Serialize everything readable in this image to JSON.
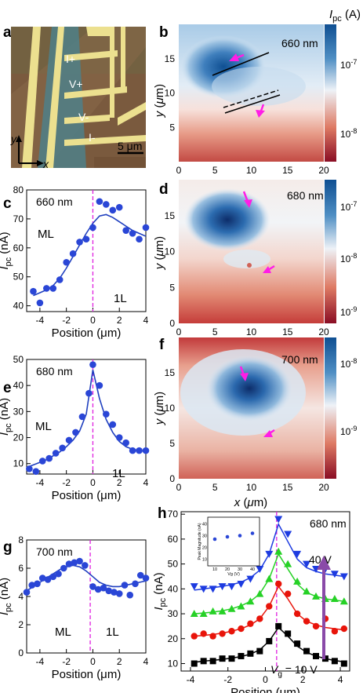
{
  "panel_labels": {
    "a": "a",
    "b": "b",
    "c": "c",
    "d": "d",
    "e": "e",
    "f": "f",
    "g": "g",
    "h": "h"
  },
  "panel_a": {
    "electrodes": [
      "I+",
      "V+",
      "V-",
      "I-"
    ],
    "scale_bar": "5 μm",
    "axis_x": "x",
    "axis_y": "y",
    "colors": {
      "substrate": "#7d5a3c",
      "flake_blue": "#4d7f88",
      "metal": "#e9dd92"
    }
  },
  "maps": {
    "colorbar_title": "I",
    "colorbar_title_sub": "pc",
    "colorbar_title_unit": " (A)",
    "colors": {
      "high": "#1f5f9e",
      "mid": "#f2f0ef",
      "low": "#a01427",
      "arrow": "#ff1de6"
    },
    "b": {
      "wavelength": "660 nm",
      "cb_ticks": [
        "10",
        "-7",
        "10",
        "-8"
      ]
    },
    "d": {
      "wavelength": "680 nm",
      "cb_ticks": [
        "10",
        "-7",
        "10",
        "-8",
        "10",
        "-9"
      ]
    },
    "f": {
      "wavelength": "700 nm",
      "cb_ticks": [
        "10",
        "-8",
        "10",
        "-9"
      ]
    },
    "ylabel_parts": [
      "y",
      " (",
      "μ",
      "m)"
    ],
    "xlabel_parts": [
      "x",
      " (",
      "μ",
      "m)"
    ]
  },
  "profile_labels": {
    "ylabel_main": "I",
    "ylabel_sub": "pc",
    "ylabel_unit": " (nA)",
    "xlabel": "Position (μm)",
    "ml": "ML",
    "onel": "1L"
  },
  "chart_data": [
    {
      "id": "c",
      "type": "scatter",
      "title": "660 nm",
      "xlabel": "Position (μm)",
      "ylabel": "Ipc (nA)",
      "xlim": [
        -5,
        4
      ],
      "ylim": [
        38,
        80
      ],
      "xticks": [
        -4,
        -2,
        0,
        2,
        4
      ],
      "yticks": [
        40,
        50,
        60,
        70,
        80
      ],
      "points": {
        "x": [
          -4.5,
          -4.0,
          -3.5,
          -3.0,
          -2.5,
          -2.0,
          -1.5,
          -1.0,
          -0.5,
          0,
          0.5,
          1.0,
          1.5,
          2.0,
          2.5,
          3.0,
          3.5,
          4.0
        ],
        "y": [
          45,
          41,
          46,
          46,
          49,
          55,
          58,
          62,
          63,
          67,
          76,
          75,
          73,
          74,
          66,
          65,
          63,
          67
        ]
      },
      "fit": {
        "x": [
          -4.5,
          -4,
          -3.5,
          -3,
          -2.5,
          -2,
          -1.5,
          -1,
          -0.5,
          0,
          0.5,
          1,
          1.5,
          2,
          2.5,
          3,
          3.5,
          4
        ],
        "y": [
          43.5,
          44.5,
          45.5,
          47,
          49.5,
          53,
          57,
          61,
          65,
          68.5,
          71,
          71.5,
          70.5,
          69,
          67.5,
          66,
          65,
          64
        ]
      },
      "marker": 0
    },
    {
      "id": "e",
      "type": "scatter",
      "title": "680 nm",
      "xlabel": "Position (μm)",
      "ylabel": "Ipc (nA)",
      "xlim": [
        -5,
        4
      ],
      "ylim": [
        6,
        50
      ],
      "xticks": [
        -4,
        -2,
        0,
        2,
        4
      ],
      "yticks": [
        10,
        20,
        30,
        40,
        50
      ],
      "points": {
        "x": [
          -4.8,
          -4.3,
          -3.8,
          -3.3,
          -2.8,
          -2.3,
          -1.8,
          -1.3,
          -0.8,
          -0.3,
          0,
          0.5,
          1.0,
          1.5,
          2.0,
          2.5,
          3.0,
          3.5,
          4.0
        ],
        "y": [
          8,
          7,
          11,
          12,
          14,
          16,
          19,
          22,
          28,
          37,
          48,
          40,
          29,
          25,
          20,
          18,
          15,
          15,
          15
        ]
      },
      "fit": {
        "x": [
          -5,
          -4.5,
          -4,
          -3.5,
          -3,
          -2.5,
          -2,
          -1.5,
          -1,
          -0.5,
          0,
          0.5,
          1,
          1.5,
          2,
          2.5,
          3,
          3.5,
          4
        ],
        "y": [
          8.5,
          9.5,
          10.5,
          11.5,
          13,
          14.5,
          16.5,
          19,
          22.5,
          29,
          46,
          35,
          27,
          22,
          18.5,
          16.5,
          15.5,
          15,
          14.8
        ]
      },
      "marker": 0
    },
    {
      "id": "g",
      "type": "scatter",
      "title": "700 nm",
      "xlabel": "Position (μm)",
      "ylabel": "Ipc (nA)",
      "xlim": [
        -5,
        4
      ],
      "ylim": [
        0,
        8
      ],
      "xticks": [
        -4,
        -2,
        0,
        2,
        4
      ],
      "yticks": [
        0,
        2,
        4,
        6,
        8
      ],
      "points": {
        "x": [
          -5,
          -4.6,
          -4.2,
          -3.8,
          -3.4,
          -3.0,
          -2.6,
          -2.2,
          -1.8,
          -1.4,
          -1.0,
          -0.6,
          0,
          0.4,
          0.8,
          1.2,
          1.6,
          2.0,
          2.4,
          2.8,
          3.2,
          3.6,
          4.0
        ],
        "y": [
          4.3,
          4.8,
          4.9,
          5.3,
          5.2,
          5.4,
          5.6,
          6.0,
          6.3,
          6.4,
          6.5,
          6.2,
          4.7,
          4.5,
          4.6,
          4.4,
          4.3,
          4.2,
          4.8,
          4.1,
          4.9,
          5.5,
          5.3
        ]
      },
      "fit": {
        "x": [
          -5,
          -4.5,
          -4,
          -3.5,
          -3,
          -2.5,
          -2,
          -1.5,
          -1,
          -0.5,
          0,
          0.5,
          1,
          1.5,
          2,
          2.5,
          3,
          3.5,
          4
        ],
        "y": [
          4.4,
          4.7,
          5.0,
          5.3,
          5.6,
          5.9,
          6.1,
          6.2,
          6.1,
          5.8,
          5.4,
          5.0,
          4.8,
          4.7,
          4.7,
          4.8,
          4.9,
          5.0,
          5.1
        ]
      },
      "marker": -0.2
    },
    {
      "id": "h",
      "type": "scatter",
      "title": "680 nm",
      "xlabel": "Position (μm)",
      "ylabel": "Ipc (nA)",
      "xlim": [
        -4.5,
        4.5
      ],
      "ylim": [
        7,
        71
      ],
      "xticks": [
        -4,
        -2,
        0,
        2,
        4
      ],
      "yticks": [
        10,
        20,
        30,
        40,
        50,
        60,
        70
      ],
      "vg_high": "40 V",
      "vg_low_main": "V",
      "vg_low_sub": "g",
      "vg_low_val": " = 10 V",
      "marker": 0.6,
      "series": [
        {
          "color": "#000000",
          "shape": "square",
          "x": [
            -3.8,
            -3.3,
            -2.8,
            -2.3,
            -1.8,
            -1.3,
            -0.8,
            -0.3,
            0.2,
            0.7,
            1.2,
            1.7,
            2.2,
            2.7,
            3.2,
            3.7,
            4.2
          ],
          "y": [
            10,
            11,
            11,
            12,
            12,
            13,
            14,
            15,
            19,
            25,
            22,
            18,
            15,
            13,
            12,
            11,
            10
          ],
          "fit": [
            10.5,
            11,
            11.3,
            11.7,
            12.2,
            12.8,
            13.8,
            15.5,
            19,
            24.5,
            21,
            17,
            14.5,
            13,
            12,
            11.2,
            10.7
          ]
        },
        {
          "color": "#e8140a",
          "shape": "circle",
          "x": [
            -3.8,
            -3.3,
            -2.8,
            -2.3,
            -1.8,
            -1.3,
            -0.8,
            -0.3,
            0.2,
            0.7,
            1.2,
            1.7,
            2.2,
            2.7,
            3.2,
            3.7,
            4.2
          ],
          "y": [
            21,
            22,
            21,
            22,
            23,
            24,
            26,
            28,
            33,
            42,
            38,
            30,
            27,
            25,
            28,
            23,
            24
          ],
          "fit": [
            21,
            21.3,
            21.7,
            22.2,
            23,
            24,
            25.5,
            28,
            33,
            41,
            36,
            30,
            27,
            25.5,
            24.5,
            24,
            23.5
          ]
        },
        {
          "color": "#26d126",
          "shape": "triangle-up",
          "x": [
            -3.8,
            -3.3,
            -2.8,
            -2.3,
            -1.8,
            -1.3,
            -0.8,
            -0.3,
            0.2,
            0.7,
            1.2,
            1.7,
            2.2,
            2.7,
            3.2,
            3.7,
            4.2
          ],
          "y": [
            30,
            30,
            31,
            31,
            32,
            33,
            35,
            38,
            44,
            55,
            50,
            43,
            39,
            37,
            36,
            36,
            35
          ],
          "fit": [
            30,
            30.3,
            30.7,
            31.2,
            32,
            33.2,
            35,
            38,
            44,
            54,
            48,
            42,
            38.5,
            37,
            36,
            35.5,
            35
          ]
        },
        {
          "color": "#1d3be0",
          "shape": "triangle-down",
          "x": [
            -3.8,
            -3.3,
            -2.8,
            -2.3,
            -1.8,
            -1.3,
            -0.8,
            -0.3,
            0.2,
            0.7,
            1.2,
            1.7,
            2.2,
            2.7,
            3.2,
            3.7,
            4.2
          ],
          "y": [
            41,
            40,
            40,
            41,
            41,
            42,
            44,
            48,
            54,
            68,
            62,
            54,
            50,
            48,
            48,
            46,
            45
          ],
          "fit": [
            39.5,
            40,
            40.5,
            41,
            41.7,
            42.7,
            44.5,
            47.5,
            54,
            66,
            59,
            52,
            48.5,
            47,
            46,
            45.5,
            45
          ]
        }
      ],
      "inset": {
        "xlabel": "Vg (V)",
        "ylabel": "Peak Magnitude (nA)",
        "xticks": [
          10,
          20,
          30,
          40
        ],
        "yticks": [
          10,
          20,
          30,
          40
        ],
        "xlim": [
          5,
          45
        ],
        "ylim": [
          5,
          45
        ],
        "x": [
          10,
          20,
          30,
          40
        ],
        "y": [
          27,
          29,
          30,
          32
        ]
      }
    }
  ]
}
